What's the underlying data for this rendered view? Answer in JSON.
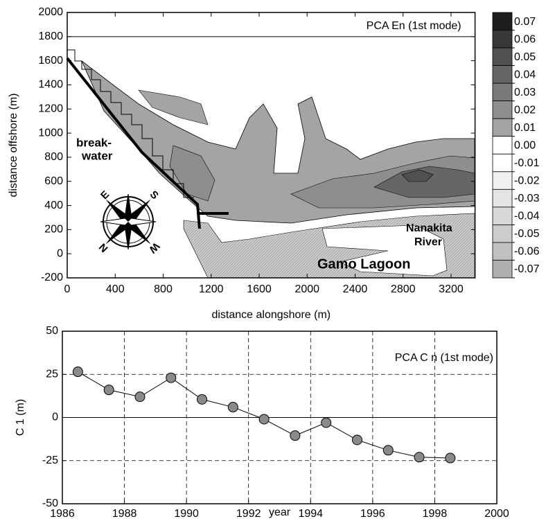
{
  "chart_data": [
    {
      "type": "contour",
      "title": "PCA En (1st mode)",
      "xlabel": "distance alongshore (m)",
      "ylabel": "distance offshore (m)",
      "xlim": [
        0,
        3400
      ],
      "xticks": [
        0,
        400,
        800,
        1200,
        1600,
        2000,
        2400,
        2800,
        3200
      ],
      "ylim": [
        -200,
        2000
      ],
      "yticks": [
        -200,
        0,
        200,
        400,
        600,
        800,
        1000,
        1200,
        1400,
        1600,
        1800,
        2000
      ],
      "annotations": [
        "break-",
        "water",
        "Nanakita",
        "River",
        "Gamo Lagoon"
      ],
      "compass_labels": [
        "E",
        "S",
        "N",
        "W"
      ],
      "colorbar": {
        "ticks": [
          0.07,
          0.06,
          0.05,
          0.04,
          0.03,
          0.02,
          0.01,
          {
            "value": 0,
            "label": "0.00"
          },
          -0.01,
          -0.02,
          -0.03,
          -0.04,
          -0.05,
          -0.06,
          -0.07
        ],
        "colors": [
          "#1e1e1e",
          "#383838",
          "#505050",
          "#666666",
          "#7a7a7a",
          "#8e8e8e",
          "#a4a4a4",
          "#ffffff",
          "#ffffff",
          "#f0f0f0",
          "#e4e4e4",
          "#d8d8d8",
          "#cccccc",
          "#c0c0c0",
          "#b0b0b0"
        ]
      }
    },
    {
      "type": "line",
      "title": "PCA C n (1st mode)",
      "xlabel": "year",
      "ylabel": "C 1 (m)",
      "x": [
        1986.5,
        1987.5,
        1988.5,
        1989.5,
        1990.5,
        1991.5,
        1992.5,
        1993.5,
        1994.5,
        1995.5,
        1996.5,
        1997.5,
        1998.5
      ],
      "values": [
        26.5,
        16,
        12,
        23,
        10.5,
        6,
        -1,
        -10.5,
        -3,
        -13,
        -19,
        -23,
        -23.5
      ],
      "color": "#8a8a8a",
      "xlim": [
        1986,
        2000
      ],
      "xticks": [
        1986,
        1988,
        1990,
        1992,
        1994,
        1996,
        1998,
        2000
      ],
      "ylim": [
        -50,
        50
      ],
      "yticks": [
        -50,
        -25,
        0,
        25,
        50
      ],
      "grid": true
    }
  ]
}
